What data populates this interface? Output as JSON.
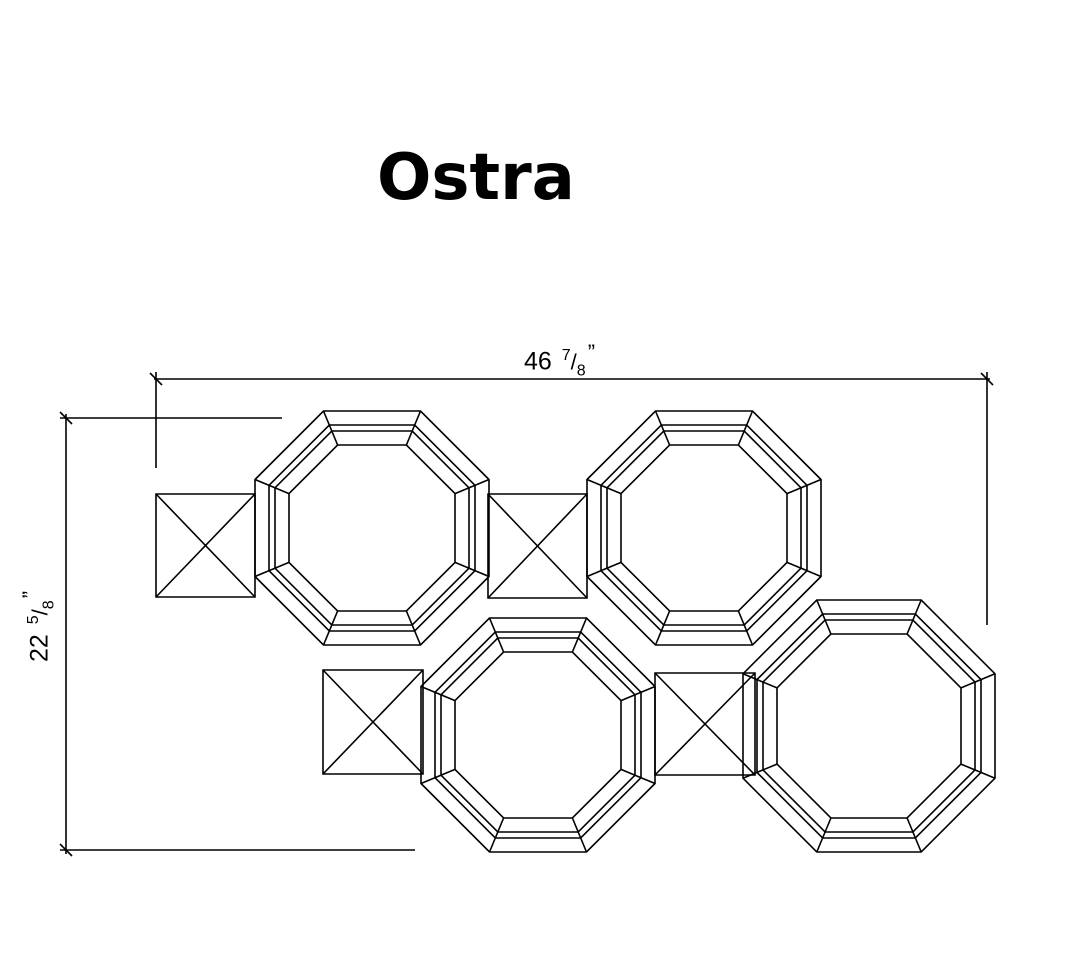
{
  "title": "Ostra",
  "dimensions": {
    "width": {
      "whole": "46",
      "numerator": "7",
      "slash": "/",
      "denominator": "8",
      "unit": "”"
    },
    "height": {
      "whole": "22",
      "numerator": "5",
      "slash": "/",
      "denominator": "8",
      "unit": "”"
    }
  }
}
